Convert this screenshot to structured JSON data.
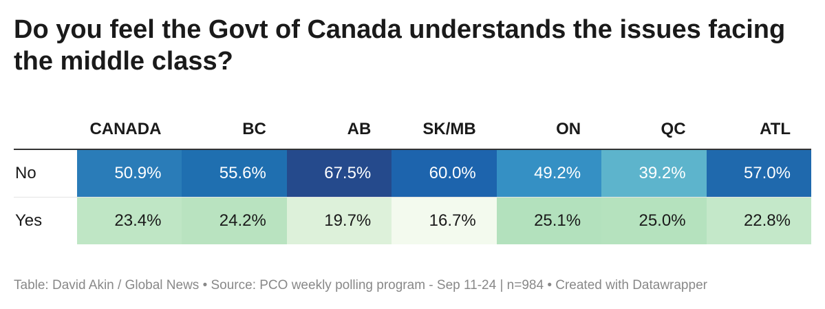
{
  "title": "Do you feel the Govt of Canada understands the issues facing the middle class?",
  "chart_data": {
    "type": "table",
    "columns": [
      "CANADA",
      "BC",
      "AB",
      "SK/MB",
      "ON",
      "QC",
      "ATL"
    ],
    "rows": [
      {
        "label": "No",
        "values": [
          "50.9%",
          "55.6%",
          "67.5%",
          "60.0%",
          "49.2%",
          "39.2%",
          "57.0%"
        ],
        "colors": [
          "#2a7cb8",
          "#1f6fb0",
          "#254a8c",
          "#1d64ad",
          "#3590c4",
          "#5db4cc",
          "#1f69ad"
        ]
      },
      {
        "label": "Yes",
        "values": [
          "23.4%",
          "24.2%",
          "19.7%",
          "16.7%",
          "25.1%",
          "25.0%",
          "22.8%"
        ],
        "colors": [
          "#bfe6c5",
          "#b9e3c0",
          "#ddf1da",
          "#f3faee",
          "#b3e1bd",
          "#b5e2be",
          "#c4e8c9"
        ]
      }
    ]
  },
  "footer": "Table: David Akin / Global News • Source: PCO weekly polling program - Sep 11-24 | n=984 • Created with Datawrapper"
}
